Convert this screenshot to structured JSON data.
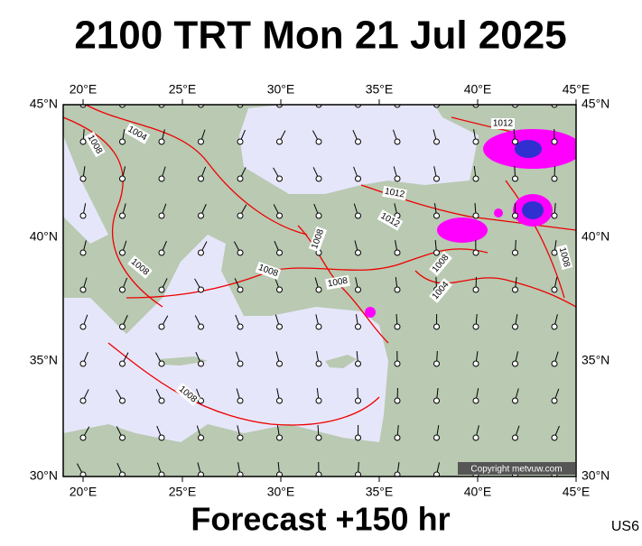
{
  "header": {
    "title": "2100 TRT Mon 21 Jul 2025"
  },
  "footer": {
    "forecast": "Forecast +150 hr",
    "code": "US6"
  },
  "map": {
    "lon_labels": [
      "20°E",
      "25°E",
      "30°E",
      "35°E",
      "40°E",
      "45°E"
    ],
    "lat_labels": [
      "45°N",
      "40°N",
      "35°N",
      "30°N"
    ],
    "isobar_labels": [
      "1004",
      "1008",
      "1012",
      "1012",
      "1012",
      "1008",
      "1008",
      "1008",
      "1008",
      "1008",
      "1004",
      "1008",
      "1008"
    ],
    "copyright": "Copyright metvuw.com"
  }
}
